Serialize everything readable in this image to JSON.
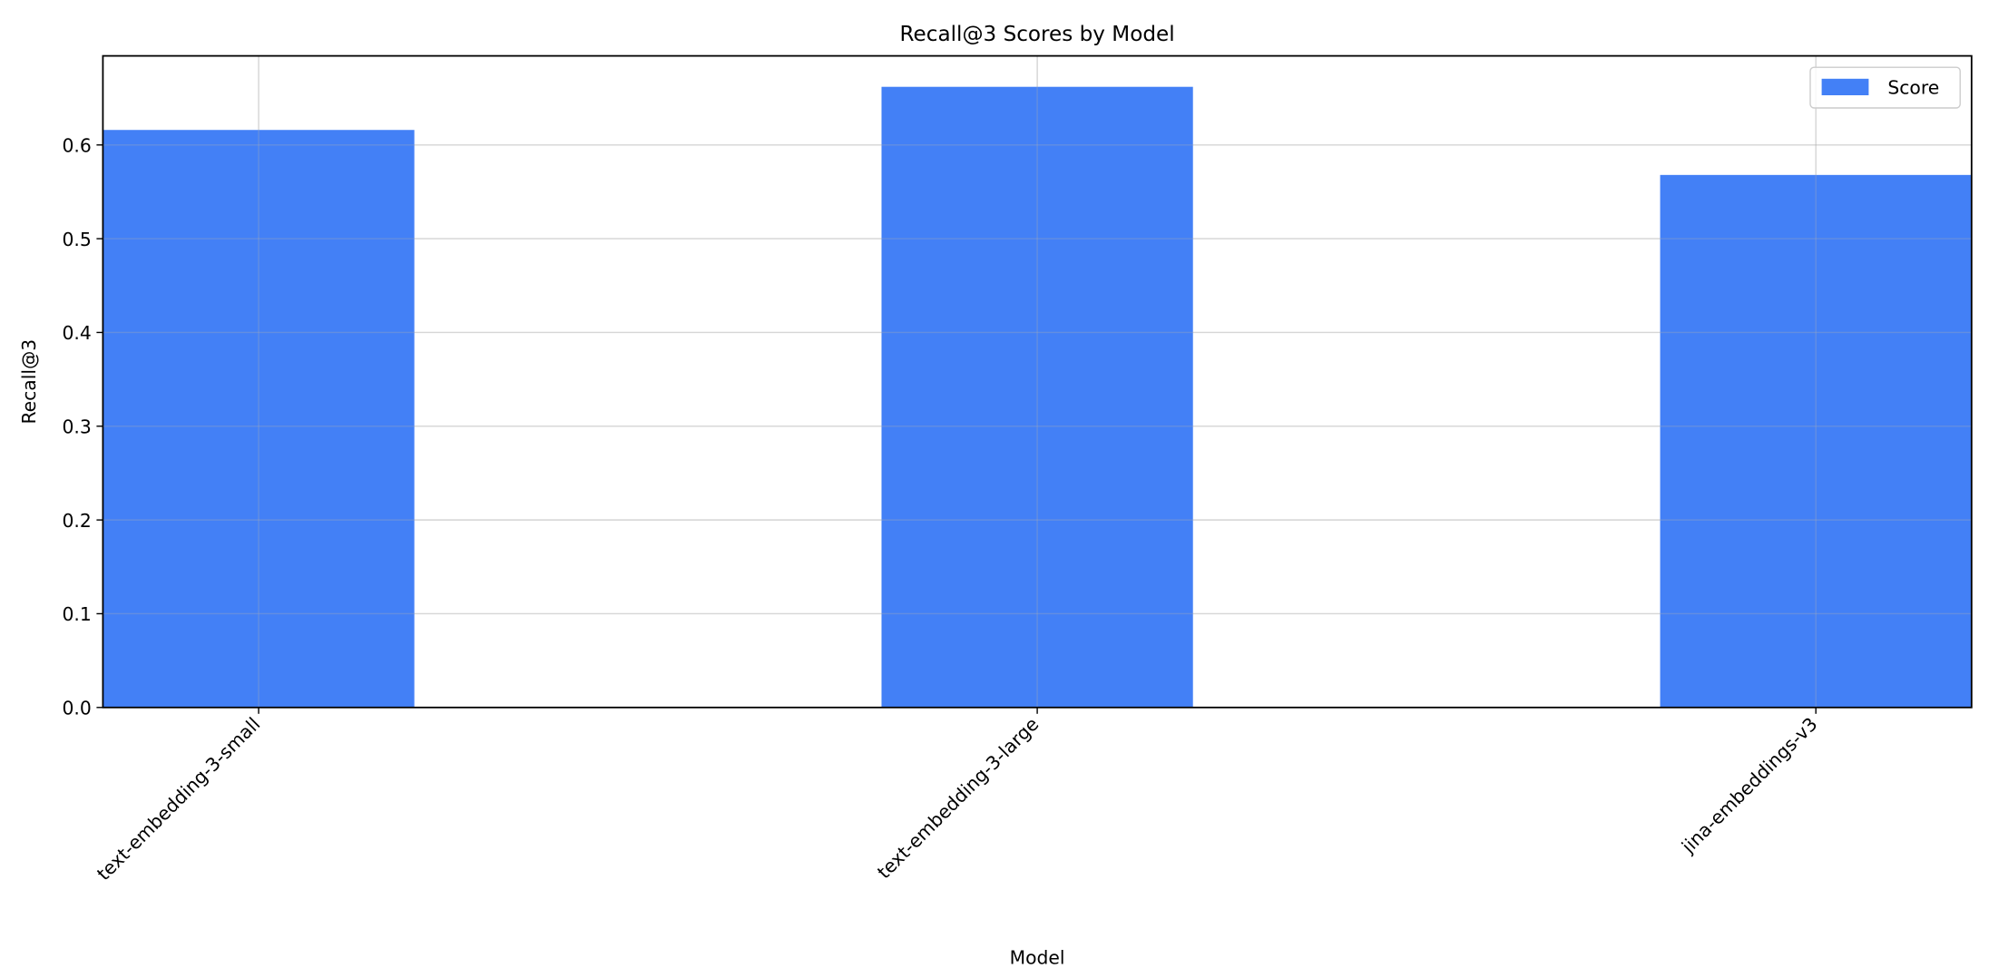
{
  "chart_data": {
    "type": "bar",
    "title": "Recall@3 Scores by Model",
    "xlabel": "Model",
    "ylabel": "Recall@3",
    "categories": [
      "text-embedding-3-small",
      "text-embedding-3-large",
      "jina-embeddings-v3"
    ],
    "series": [
      {
        "name": "Score",
        "values": [
          0.616,
          0.662,
          0.568
        ],
        "color": "#4380f6"
      }
    ],
    "ylim": [
      0,
      0.695
    ],
    "yticks": [
      "0.0",
      "0.1",
      "0.2",
      "0.3",
      "0.4",
      "0.5",
      "0.6"
    ],
    "ytick_values": [
      0,
      0.1,
      0.2,
      0.3,
      0.4,
      0.5,
      0.6
    ],
    "grid": true,
    "legend": "top-right",
    "x_tick_rotation": "45 degrees"
  }
}
